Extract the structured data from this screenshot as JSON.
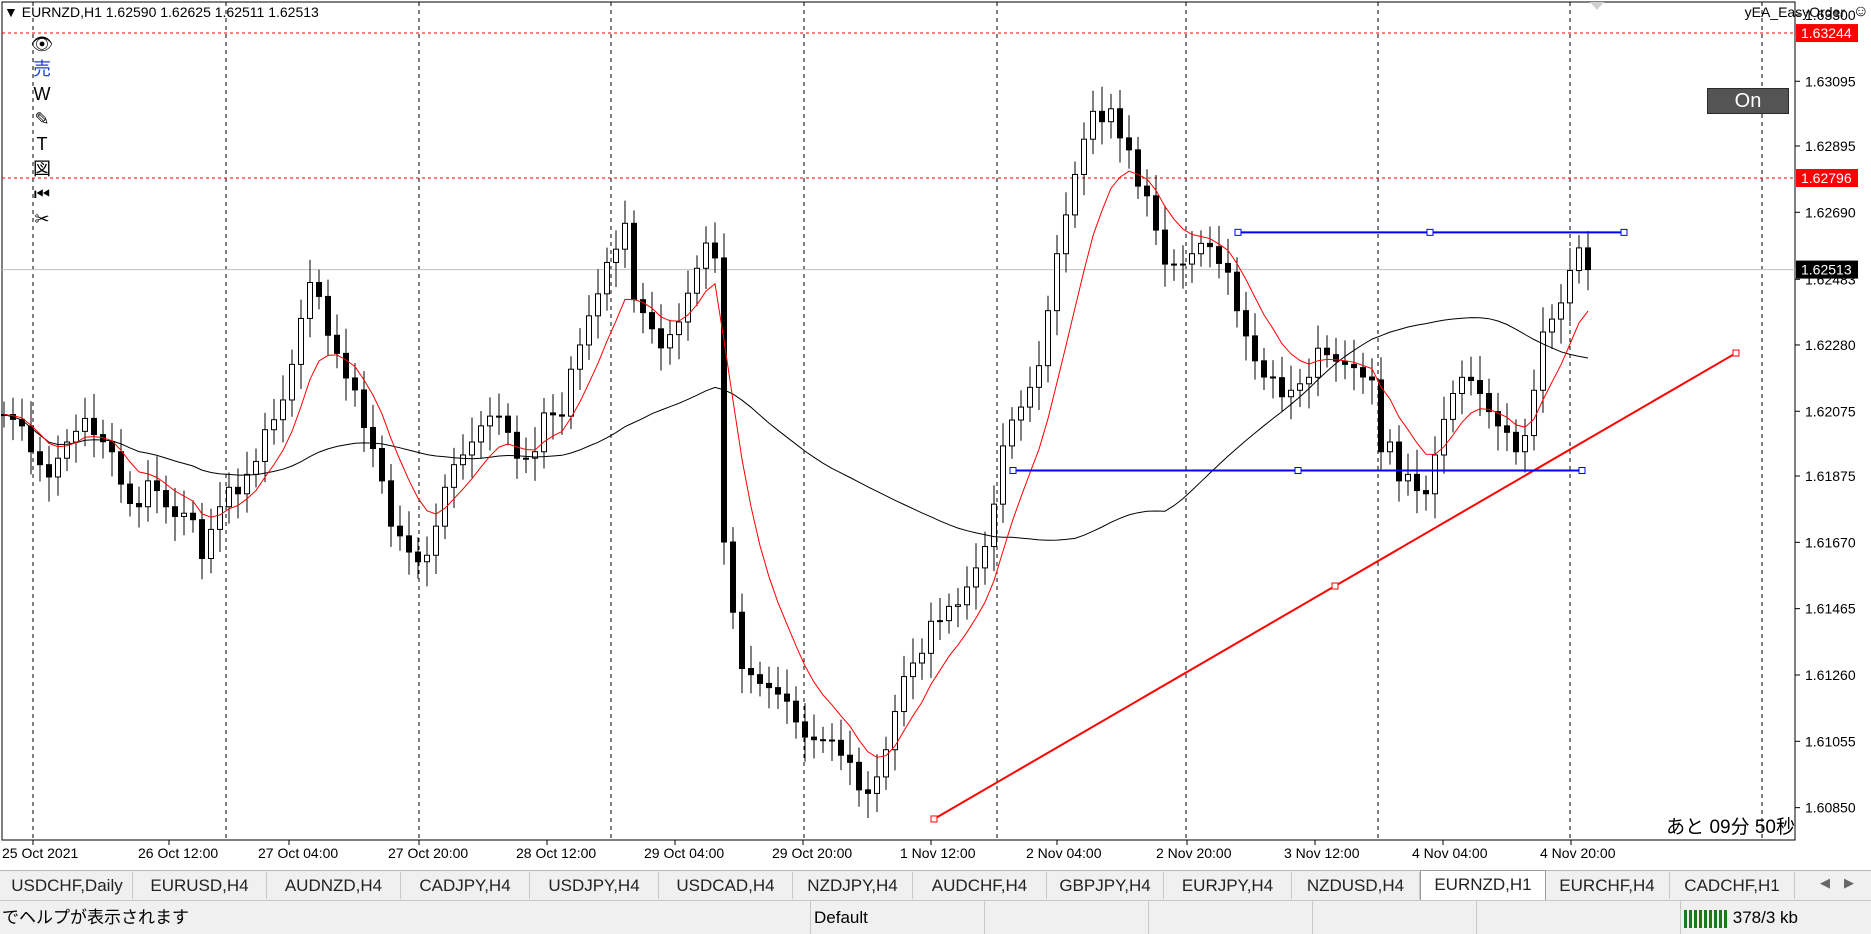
{
  "chart": {
    "title": "EURNZD,H1  1.62590 1.62625 1.62511 1.62513",
    "ea_name": "yEA_EasyOrder",
    "ea_icon": "smiley-icon",
    "on_button": "On",
    "countdown": "あと 09分 50秒",
    "line_color": "#ff0000",
    "channel_color": "#0000ff",
    "current_price_label": "1.62513",
    "price_axis": {
      "min": 1.6075,
      "max": 1.6334,
      "ticks": [
        "1.63300",
        "1.63095",
        "1.62895",
        "1.62690",
        "1.62483",
        "1.62280",
        "1.62075",
        "1.61875",
        "1.61670",
        "1.61465",
        "1.61260",
        "1.61055",
        "1.60850"
      ],
      "hlines": [
        {
          "label": "1.63244",
          "color": "#ff0000"
        },
        {
          "label": "1.62796",
          "color": "#ff0000"
        },
        {
          "label": "1.62513",
          "color": "#000000"
        }
      ]
    },
    "time_axis": [
      "25 Oct 2021",
      "26 Oct 12:00",
      "27 Oct 04:00",
      "27 Oct 20:00",
      "28 Oct 12:00",
      "29 Oct 04:00",
      "29 Oct 20:00",
      "1 Nov 12:00",
      "2 Nov 04:00",
      "2 Nov 20:00",
      "3 Nov 12:00",
      "4 Nov 04:00",
      "4 Nov 20:00"
    ]
  },
  "toolbar": [
    {
      "name": "eye-icon",
      "glyph": "👁"
    },
    {
      "name": "sell-icon",
      "glyph": "売"
    },
    {
      "name": "w-icon",
      "glyph": "W"
    },
    {
      "name": "pencil-icon",
      "glyph": "✎"
    },
    {
      "name": "text-icon",
      "glyph": "T"
    },
    {
      "name": "diagram-icon",
      "glyph": "図"
    },
    {
      "name": "rewind-icon",
      "glyph": "⏮"
    },
    {
      "name": "scissors-icon",
      "glyph": "✂"
    }
  ],
  "tabs": [
    "USDCHF,Daily",
    "EURUSD,H4",
    "AUDNZD,H4",
    "CADJPY,H4",
    "USDJPY,H4",
    "USDCAD,H4",
    "NZDJPY,H4",
    "AUDCHF,H4",
    "GBPJPY,H4",
    "EURJPY,H4",
    "NZDUSD,H4",
    "EURNZD,H1",
    "EURCHF,H4",
    "CADCHF,H1"
  ],
  "active_tab": "EURNZD,H1",
  "status": {
    "help": "でヘルプが表示されます",
    "profile": "Default",
    "traffic": "378/3 kb"
  },
  "chart_data": {
    "type": "candlestick",
    "series": [
      {
        "name": "EURNZD,H1",
        "close": [
          1.62065,
          1.6205,
          1.6203,
          1.6195,
          1.6191,
          1.61872,
          1.6193,
          1.6198,
          1.62013,
          1.62053,
          1.62003,
          1.61981,
          1.6195,
          1.6185,
          1.6179,
          1.6178,
          1.6186,
          1.6183,
          1.6178,
          1.6175,
          1.6176,
          1.6174,
          1.6162,
          1.6171,
          1.6178,
          1.6184,
          1.6182,
          1.6188,
          1.6192,
          1.62018,
          1.62049,
          1.6211,
          1.6222,
          1.62362,
          1.62473,
          1.6243,
          1.6231,
          1.62254,
          1.62178,
          1.62141,
          1.62025,
          1.6196,
          1.6186,
          1.6172,
          1.6169,
          1.6164,
          1.6161,
          1.6163,
          1.6172,
          1.6184,
          1.6191,
          1.6194,
          1.6198,
          1.6203,
          1.6206,
          1.6206,
          1.6201,
          1.6193,
          1.6193,
          1.6195,
          1.6207,
          1.62064,
          1.6206,
          1.62205,
          1.6228,
          1.6237,
          1.62438,
          1.62535,
          1.62576,
          1.62656,
          1.6242,
          1.6238,
          1.6233,
          1.62271,
          1.62312,
          1.62351,
          1.6244,
          1.62517,
          1.62595,
          1.62549,
          1.61671,
          1.61454,
          1.6128,
          1.61261,
          1.61234,
          1.61221,
          1.61201,
          1.61179,
          1.61115,
          1.61068,
          1.6106,
          1.61059,
          1.61058,
          1.61012,
          1.6099,
          1.60905,
          1.60894,
          1.60945,
          1.61029,
          1.61147,
          1.61255,
          1.61297,
          1.61327,
          1.61426,
          1.61428,
          1.61472,
          1.61477,
          1.61532,
          1.61591,
          1.61657,
          1.61788,
          1.61968,
          1.62048,
          1.62088,
          1.62149,
          1.62216,
          1.62386,
          1.62562,
          1.62682,
          1.62807,
          1.62916,
          1.63002,
          1.6297,
          1.6301,
          1.6292,
          1.62883,
          1.62771,
          1.62741,
          1.62635,
          1.6253,
          1.6253,
          1.6253,
          1.62562,
          1.62594,
          1.62584,
          1.62532,
          1.62505,
          1.62386,
          1.62308,
          1.62231,
          1.62181,
          1.62179,
          1.6212,
          1.6214,
          1.6216,
          1.6218,
          1.6227,
          1.6225,
          1.6223,
          1.6222,
          1.6221,
          1.62181,
          1.62172,
          1.6195,
          1.6198,
          1.6186,
          1.6188,
          1.6183,
          1.6182,
          1.6194,
          1.6205,
          1.6213,
          1.6218,
          1.6217,
          1.6213,
          1.62074,
          1.6203,
          1.6201,
          1.6195,
          1.62,
          1.6214,
          1.6232,
          1.6236,
          1.6241,
          1.6251,
          1.6258,
          1.62513
        ]
      }
    ],
    "lines": [
      {
        "name": "trend-line",
        "color": "red",
        "from": {
          "time": "1 Nov 12:00",
          "price": 1.60815
        },
        "to": {
          "price": 1.62255
        }
      },
      {
        "name": "channel-upper",
        "color": "blue",
        "price": 1.62628
      },
      {
        "name": "channel-lower",
        "color": "blue",
        "price": 1.61892
      }
    ]
  }
}
